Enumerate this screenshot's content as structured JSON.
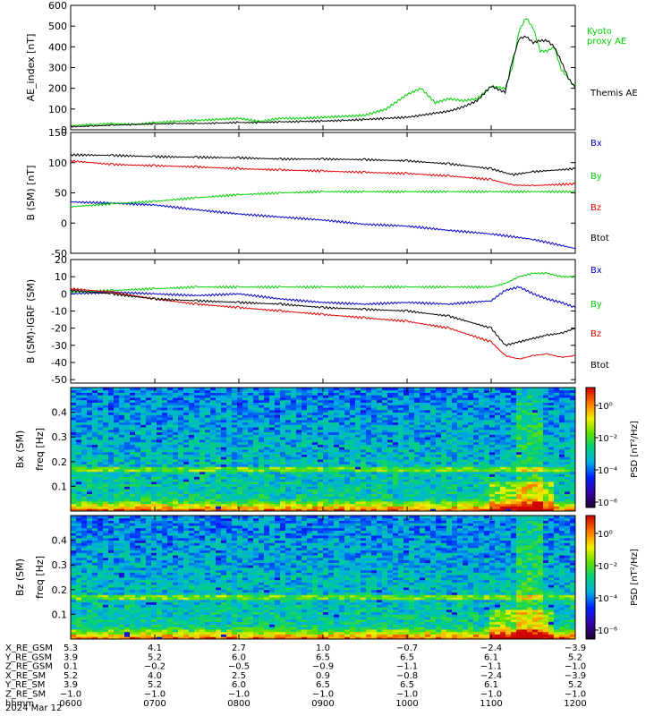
{
  "colors": {
    "black": "#000000",
    "green": "#00d000",
    "red": "#e00000",
    "blue": "#0000cc",
    "axis": "#000000",
    "background": "#ffffff"
  },
  "chart_data": [
    {
      "type": "line",
      "ylabel": "AE_index [nT]",
      "ylim": [
        0,
        600
      ],
      "yticks": [
        0,
        100,
        200,
        300,
        400,
        500,
        600
      ],
      "xlim": [
        "0600",
        "1200"
      ],
      "grid": false,
      "legend_position": "right",
      "series": [
        {
          "name": "Kyoto proxy AE",
          "color": "#00d000",
          "x": [
            "0600",
            "0615",
            "0630",
            "0645",
            "0700",
            "0715",
            "0730",
            "0745",
            "0800",
            "0815",
            "0830",
            "0845",
            "0900",
            "0915",
            "0930",
            "0945",
            "1000",
            "1010",
            "1020",
            "1030",
            "1040",
            "1050",
            "1100",
            "1110",
            "1115",
            "1120",
            "1125",
            "1130",
            "1135",
            "1140",
            "1145",
            "1150",
            "1155",
            "1200"
          ],
          "values": [
            20,
            25,
            30,
            25,
            35,
            40,
            45,
            50,
            55,
            40,
            55,
            55,
            60,
            65,
            70,
            100,
            170,
            200,
            130,
            150,
            140,
            150,
            210,
            200,
            300,
            480,
            540,
            490,
            380,
            380,
            400,
            290,
            250,
            205
          ]
        },
        {
          "name": "Themis AE",
          "color": "#000000",
          "x": [
            "0600",
            "0615",
            "0630",
            "0645",
            "0700",
            "0715",
            "0730",
            "0745",
            "0800",
            "0815",
            "0830",
            "0845",
            "0900",
            "0915",
            "0930",
            "0945",
            "1000",
            "1010",
            "1020",
            "1030",
            "1040",
            "1050",
            "1100",
            "1110",
            "1115",
            "1120",
            "1125",
            "1130",
            "1135",
            "1140",
            "1145",
            "1150",
            "1155",
            "1200"
          ],
          "values": [
            15,
            18,
            22,
            25,
            28,
            30,
            30,
            32,
            35,
            35,
            38,
            40,
            42,
            45,
            50,
            55,
            60,
            70,
            80,
            90,
            110,
            140,
            210,
            180,
            330,
            440,
            450,
            420,
            430,
            430,
            400,
            330,
            250,
            200
          ]
        }
      ]
    },
    {
      "type": "line",
      "ylabel": "B (SM) [nT]",
      "ylim": [
        -50,
        150
      ],
      "yticks": [
        -50,
        0,
        50,
        100,
        150
      ],
      "xlim": [
        "0600",
        "1200"
      ],
      "grid": false,
      "legend_position": "right",
      "series": [
        {
          "name": "Bx",
          "color": "#0000cc",
          "x": [
            "0600",
            "0630",
            "0700",
            "0730",
            "0800",
            "0830",
            "0900",
            "0930",
            "1000",
            "1030",
            "1100",
            "1130",
            "1200"
          ],
          "values": [
            35,
            33,
            30,
            22,
            15,
            10,
            5,
            -2,
            -5,
            -12,
            -18,
            -27,
            -42
          ]
        },
        {
          "name": "By",
          "color": "#00d000",
          "x": [
            "0600",
            "0630",
            "0700",
            "0730",
            "0800",
            "0830",
            "0900",
            "0930",
            "1000",
            "1030",
            "1100",
            "1130",
            "1200"
          ],
          "values": [
            27,
            32,
            36,
            42,
            47,
            50,
            52,
            52,
            52,
            52,
            52,
            52,
            52
          ]
        },
        {
          "name": "Bz",
          "color": "#e00000",
          "x": [
            "0600",
            "0630",
            "0700",
            "0730",
            "0800",
            "0830",
            "0900",
            "0930",
            "1000",
            "1030",
            "1100",
            "1115",
            "1130",
            "1200"
          ],
          "values": [
            103,
            97,
            95,
            93,
            90,
            88,
            86,
            84,
            82,
            78,
            72,
            63,
            62,
            65
          ]
        },
        {
          "name": "Btot",
          "color": "#000000",
          "x": [
            "0600",
            "0630",
            "0700",
            "0730",
            "0800",
            "0830",
            "0900",
            "0930",
            "1000",
            "1030",
            "1100",
            "1115",
            "1130",
            "1200"
          ],
          "values": [
            113,
            112,
            110,
            109,
            108,
            106,
            106,
            105,
            103,
            98,
            90,
            80,
            85,
            90
          ]
        }
      ]
    },
    {
      "type": "line",
      "ylabel": "B (SM)-IGRF (SM)",
      "ylim": [
        -52,
        20
      ],
      "yticks": [
        -50,
        -40,
        -30,
        -20,
        -10,
        0,
        10,
        20
      ],
      "xlim": [
        "0600",
        "1200"
      ],
      "grid": false,
      "legend_position": "right",
      "series": [
        {
          "name": "Bx",
          "color": "#0000cc",
          "x": [
            "0600",
            "0630",
            "0700",
            "0730",
            "0800",
            "0830",
            "0900",
            "0930",
            "1000",
            "1030",
            "1100",
            "1110",
            "1120",
            "1130",
            "1140",
            "1150",
            "1200"
          ],
          "values": [
            0,
            1,
            0,
            -1,
            0,
            -3,
            -5,
            -6,
            -5,
            -6,
            -4,
            2,
            4,
            0,
            -3,
            -5,
            -8
          ]
        },
        {
          "name": "By",
          "color": "#00d000",
          "x": [
            "0600",
            "0630",
            "0700",
            "0730",
            "0800",
            "0830",
            "0900",
            "0930",
            "1000",
            "1030",
            "1100",
            "1110",
            "1120",
            "1130",
            "1140",
            "1150",
            "1200"
          ],
          "values": [
            1,
            2,
            3,
            4,
            4,
            4,
            4,
            4,
            4,
            4,
            4,
            6,
            10,
            12,
            12,
            10,
            10
          ]
        },
        {
          "name": "Bz",
          "color": "#e00000",
          "x": [
            "0600",
            "0630",
            "0700",
            "0730",
            "0800",
            "0830",
            "0900",
            "0930",
            "1000",
            "1030",
            "1100",
            "1110",
            "1120",
            "1130",
            "1140",
            "1150",
            "1200"
          ],
          "values": [
            3,
            1,
            -3,
            -6,
            -8,
            -10,
            -12,
            -14,
            -16,
            -20,
            -28,
            -36,
            -38,
            -36,
            -35,
            -37,
            -36
          ]
        },
        {
          "name": "Btot",
          "color": "#000000",
          "x": [
            "0600",
            "0630",
            "0700",
            "0730",
            "0800",
            "0830",
            "0900",
            "0930",
            "1000",
            "1030",
            "1100",
            "1110",
            "1120",
            "1130",
            "1140",
            "1150",
            "1200"
          ],
          "values": [
            2,
            0,
            -3,
            -4,
            -5,
            -6,
            -8,
            -9,
            -10,
            -13,
            -20,
            -30,
            -28,
            -26,
            -24,
            -23,
            -20
          ]
        }
      ]
    },
    {
      "type": "heatmap",
      "ylabel": "Bx (SM)",
      "ylabel2": "freq [Hz]",
      "ylim": [
        0,
        0.5
      ],
      "yticks": [
        0.1,
        0.2,
        0.3,
        0.4
      ],
      "xlim": [
        "0600",
        "1200"
      ],
      "colorbar_label": "PSD [nT²/Hz]",
      "colorbar_ticks": [
        "10⁰",
        "10⁻²",
        "10⁻⁴",
        "10⁻⁶"
      ],
      "colormap": "rainbow",
      "features": [
        "intense power below 0.05 Hz",
        "narrow line near 0.17 Hz",
        "broadband enhancement near 1100-1130"
      ]
    },
    {
      "type": "heatmap",
      "ylabel": "Bz (SM)",
      "ylabel2": "freq [Hz]",
      "ylim": [
        0,
        0.5
      ],
      "yticks": [
        0.1,
        0.2,
        0.3,
        0.4
      ],
      "xlim": [
        "0600",
        "1200"
      ],
      "colorbar_label": "PSD [nT²/Hz]",
      "colorbar_ticks": [
        "10⁰",
        "10⁻²",
        "10⁻⁴",
        "10⁻⁶"
      ],
      "colormap": "rainbow",
      "features": [
        "intense power below 0.05 Hz",
        "narrow line near 0.17 Hz",
        "broadband enhancement near 1100-1130"
      ]
    }
  ],
  "legends": [
    [
      "Kyoto",
      "proxy AE",
      "Themis AE"
    ],
    [
      "Bx",
      "By",
      "Bz",
      "Btot"
    ],
    [
      "Bx",
      "By",
      "Bz",
      "Btot"
    ]
  ],
  "ephemeris": {
    "rows": [
      {
        "label": "X_RE_GSM",
        "values": [
          "5.3",
          "4.1",
          "2.7",
          "1.0",
          "−0.7",
          "−2.4",
          "−3.9"
        ]
      },
      {
        "label": "Y_RE_GSM",
        "values": [
          "3.9",
          "5.2",
          "6.0",
          "6.5",
          "6.5",
          "6.1",
          "5.2"
        ]
      },
      {
        "label": "Z_RE_GSM",
        "values": [
          "0.1",
          "−0.2",
          "−0.5",
          "−0.9",
          "−1.1",
          "−1.1",
          "−1.0"
        ]
      },
      {
        "label": "X_RE_SM",
        "values": [
          "5.2",
          "4.0",
          "2.5",
          "0.9",
          "−0.8",
          "−2.4",
          "−3.9"
        ]
      },
      {
        "label": "Y_RE_SM",
        "values": [
          "3.9",
          "5.2",
          "6.0",
          "6.5",
          "6.5",
          "6.1",
          "5.2"
        ]
      },
      {
        "label": "Z_RE_SM",
        "values": [
          "−1.0",
          "−1.0",
          "−1.0",
          "−1.0",
          "−1.0",
          "−1.0",
          "−1.0"
        ]
      },
      {
        "label": "hhmm",
        "values": [
          "0600",
          "0700",
          "0800",
          "0900",
          "1000",
          "1100",
          "1200"
        ]
      }
    ],
    "date": "2024 Mar 12"
  }
}
